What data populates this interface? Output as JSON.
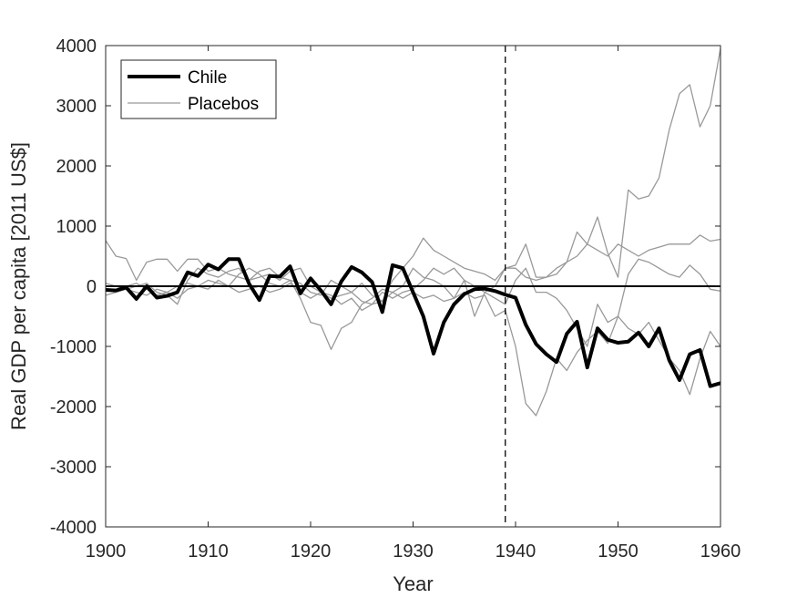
{
  "chart_data": {
    "type": "line",
    "title": "",
    "xlabel": "Year",
    "ylabel": "Real GDP per capita [2011 US$]",
    "xlim": [
      1900,
      1960
    ],
    "ylim": [
      -4000,
      4000
    ],
    "xticks": [
      1900,
      1910,
      1920,
      1930,
      1940,
      1950,
      1960
    ],
    "yticks": [
      -4000,
      -3000,
      -2000,
      -1000,
      0,
      1000,
      2000,
      3000,
      4000
    ],
    "grid": false,
    "legend_position": "top-left",
    "treatment_year": 1939,
    "colors": {
      "treated": "#000000",
      "placebo": "#999999",
      "axis": "#262626"
    },
    "series": [
      {
        "name": "Chile",
        "role": "treated",
        "x": [
          1900,
          1901,
          1902,
          1903,
          1904,
          1905,
          1906,
          1907,
          1908,
          1909,
          1910,
          1911,
          1912,
          1913,
          1914,
          1915,
          1916,
          1917,
          1918,
          1919,
          1920,
          1921,
          1922,
          1923,
          1924,
          1925,
          1926,
          1927,
          1928,
          1929,
          1930,
          1931,
          1932,
          1933,
          1934,
          1935,
          1936,
          1937,
          1938,
          1939,
          1940,
          1941,
          1942,
          1943,
          1944,
          1945,
          1946,
          1947,
          1948,
          1949,
          1950,
          1951,
          1952,
          1953,
          1954,
          1955,
          1956,
          1957,
          1958,
          1959,
          1960
        ],
        "values": [
          -60,
          -70,
          -20,
          -210,
          0,
          -190,
          -160,
          -100,
          230,
          170,
          360,
          280,
          450,
          450,
          40,
          -230,
          170,
          160,
          330,
          -120,
          130,
          -70,
          -300,
          80,
          320,
          230,
          70,
          -430,
          350,
          300,
          -100,
          -500,
          -1120,
          -600,
          -300,
          -130,
          -50,
          -40,
          -80,
          -140,
          -190,
          -640,
          -960,
          -1130,
          -1260,
          -790,
          -590,
          -1350,
          -700,
          -890,
          -940,
          -920,
          -770,
          -1000,
          -700,
          -1230,
          -1560,
          -1130,
          -1060,
          -1660,
          -1610
        ]
      },
      {
        "name": "Placebos",
        "role": "placebo",
        "x": [
          1900,
          1901,
          1902,
          1903,
          1904,
          1905,
          1906,
          1907,
          1908,
          1909,
          1910,
          1911,
          1912,
          1913,
          1914,
          1915,
          1916,
          1917,
          1918,
          1919,
          1920,
          1921,
          1922,
          1923,
          1924,
          1925,
          1926,
          1927,
          1928,
          1929,
          1930,
          1931,
          1932,
          1933,
          1934,
          1935,
          1936,
          1937,
          1938,
          1939,
          1940,
          1941,
          1942,
          1943,
          1944,
          1945,
          1946,
          1947,
          1948,
          1949,
          1950,
          1951,
          1952,
          1953,
          1954,
          1955,
          1956,
          1957,
          1958,
          1959,
          1960
        ],
        "values": [
          760,
          500,
          460,
          100,
          400,
          450,
          450,
          250,
          450,
          450,
          250,
          300,
          200,
          150,
          100,
          250,
          300,
          150,
          100,
          50,
          -100,
          -150,
          100,
          0,
          -100,
          50,
          -150,
          -250,
          100,
          300,
          500,
          800,
          600,
          500,
          400,
          300,
          250,
          200,
          100,
          300,
          300,
          150,
          100,
          150,
          300,
          400,
          500,
          700,
          600,
          500,
          700,
          600,
          500,
          600,
          650,
          700,
          700,
          700,
          850,
          750,
          780
        ]
      },
      {
        "name": "",
        "role": "placebo",
        "x": [
          1900,
          1901,
          1902,
          1903,
          1904,
          1905,
          1906,
          1907,
          1908,
          1909,
          1910,
          1911,
          1912,
          1913,
          1914,
          1915,
          1916,
          1917,
          1918,
          1919,
          1920,
          1921,
          1922,
          1923,
          1924,
          1925,
          1926,
          1927,
          1928,
          1929,
          1930,
          1931,
          1932,
          1933,
          1934,
          1935,
          1936,
          1937,
          1938,
          1939,
          1940,
          1941,
          1942,
          1943,
          1944,
          1945,
          1946,
          1947,
          1948,
          1949,
          1950,
          1951,
          1952,
          1953,
          1954,
          1955,
          1956,
          1957,
          1958,
          1959,
          1960
        ],
        "values": [
          -150,
          -100,
          -50,
          -100,
          -150,
          -50,
          -100,
          -200,
          -50,
          0,
          100,
          50,
          0,
          -100,
          -50,
          0,
          -100,
          -50,
          50,
          -100,
          -200,
          -100,
          -150,
          -300,
          -200,
          -400,
          -300,
          -250,
          -100,
          -200,
          -100,
          -200,
          -150,
          -250,
          -200,
          -100,
          -200,
          -150,
          -500,
          -400,
          -1000,
          -1950,
          -2150,
          -1750,
          -1200,
          -1400,
          -1100,
          -900,
          -750,
          -950,
          -500,
          -700,
          -800,
          -600,
          -900,
          -1200,
          -1400,
          -1800,
          -1200,
          -750,
          -1000
        ]
      },
      {
        "name": "",
        "role": "placebo",
        "x": [
          1900,
          1901,
          1902,
          1903,
          1904,
          1905,
          1906,
          1907,
          1908,
          1909,
          1910,
          1911,
          1912,
          1913,
          1914,
          1915,
          1916,
          1917,
          1918,
          1919,
          1920,
          1921,
          1922,
          1923,
          1924,
          1925,
          1926,
          1927,
          1928,
          1929,
          1930,
          1931,
          1932,
          1933,
          1934,
          1935,
          1936,
          1937,
          1938,
          1939,
          1940,
          1941,
          1942,
          1943,
          1944,
          1945,
          1946,
          1947,
          1948,
          1949,
          1950,
          1951,
          1952,
          1953,
          1954,
          1955,
          1956,
          1957,
          1958,
          1959,
          1960
        ],
        "values": [
          50,
          0,
          -50,
          0,
          50,
          -100,
          -150,
          -300,
          100,
          300,
          200,
          150,
          250,
          300,
          100,
          150,
          200,
          100,
          250,
          300,
          0,
          -100,
          -200,
          -150,
          -100,
          -250,
          -300,
          -100,
          -200,
          -100,
          -50,
          100,
          300,
          200,
          300,
          100,
          0,
          -100,
          -200,
          -300,
          100,
          300,
          -100,
          -100,
          -200,
          -400,
          -700,
          -1000,
          -300,
          -600,
          -500,
          200,
          450,
          400,
          300,
          200,
          150,
          350,
          200,
          -50,
          -80
        ]
      },
      {
        "name": "",
        "role": "placebo",
        "x": [
          1900,
          1901,
          1902,
          1903,
          1904,
          1905,
          1906,
          1907,
          1908,
          1909,
          1910,
          1911,
          1912,
          1913,
          1914,
          1915,
          1916,
          1917,
          1918,
          1919,
          1920,
          1921,
          1922,
          1923,
          1924,
          1925,
          1926,
          1927,
          1928,
          1929,
          1930,
          1931,
          1932,
          1933,
          1934,
          1935,
          1936,
          1937,
          1938,
          1939,
          1940,
          1941,
          1942,
          1943,
          1944,
          1945,
          1946,
          1947,
          1948,
          1949,
          1950,
          1951,
          1952,
          1953,
          1954,
          1955,
          1956,
          1957,
          1958,
          1959,
          1960
        ],
        "values": [
          -50,
          -100,
          0,
          50,
          -50,
          -150,
          -100,
          0,
          50,
          0,
          -50,
          100,
          0,
          200,
          300,
          200,
          50,
          0,
          100,
          -200,
          -600,
          -650,
          -1050,
          -700,
          -600,
          -300,
          -200,
          -50,
          -100,
          0,
          300,
          150,
          100,
          0,
          -200,
          100,
          -500,
          -100,
          0,
          300,
          350,
          700,
          150,
          150,
          200,
          400,
          900,
          700,
          1150,
          550,
          150,
          1600,
          1450,
          1500,
          1800,
          2600,
          3200,
          3350,
          2650,
          3000,
          3950
        ]
      }
    ]
  },
  "legend": [
    {
      "label": "Chile",
      "role": "treated"
    },
    {
      "label": "Placebos",
      "role": "placebo"
    }
  ]
}
